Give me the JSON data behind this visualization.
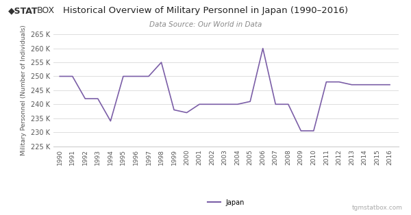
{
  "title": "Historical Overview of Military Personnel in Japan (1990–2016)",
  "subtitle": "Data Source: Our World in Data",
  "ylabel": "Military Personnel (Number of Individuals)",
  "watermark": "tgmstatbox.com",
  "legend_label": "Japan",
  "line_color": "#7B5EA7",
  "background_color": "#ffffff",
  "years": [
    1990,
    1991,
    1992,
    1993,
    1994,
    1995,
    1996,
    1997,
    1998,
    1999,
    2000,
    2001,
    2002,
    2003,
    2004,
    2005,
    2006,
    2007,
    2008,
    2009,
    2010,
    2011,
    2012,
    2013,
    2014,
    2015,
    2016
  ],
  "values": [
    250000,
    250000,
    242000,
    242000,
    234000,
    250000,
    250000,
    250000,
    255000,
    238000,
    237000,
    240000,
    240000,
    240000,
    240000,
    241000,
    260000,
    240000,
    240000,
    230500,
    230500,
    248000,
    248000,
    247000,
    247000,
    247000,
    247000
  ],
  "ylim": [
    225000,
    265000
  ],
  "yticks": [
    225000,
    230000,
    235000,
    240000,
    245000,
    250000,
    255000,
    260000,
    265000
  ]
}
